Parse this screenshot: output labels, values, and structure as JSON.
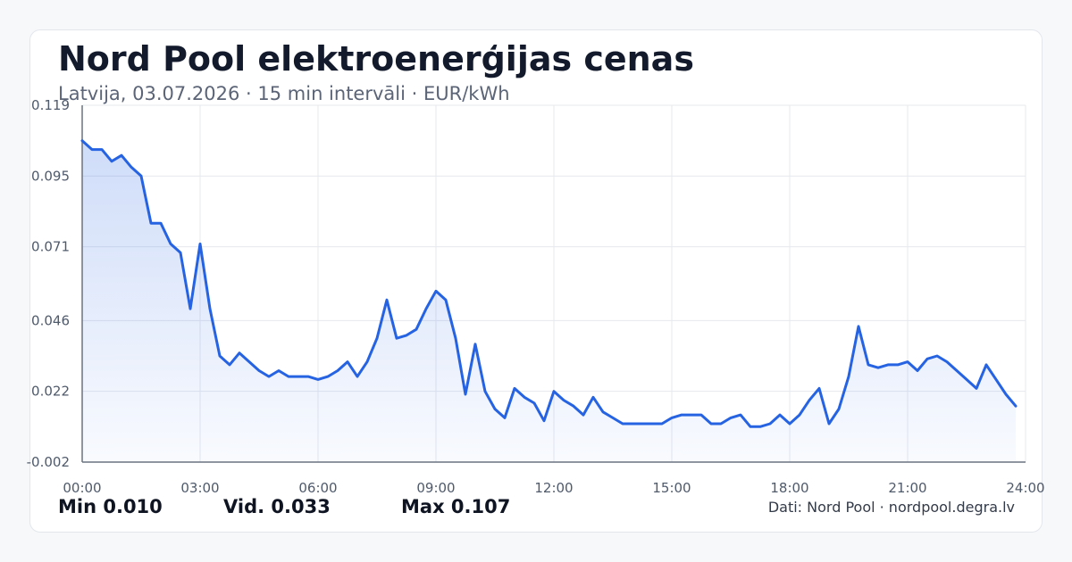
{
  "header": {
    "title": "Nord Pool elektroenerģijas cenas",
    "subtitle": "Latvija, 03.07.2026 · 15 min intervāli · EUR/kWh"
  },
  "stats": {
    "min": "Min 0.010",
    "avg": "Vid. 0.033",
    "max": "Max 0.107"
  },
  "footer": {
    "credit": "Dati: Nord Pool · nordpool.degra.lv"
  },
  "colors": {
    "line": "#2563e3",
    "grid": "#e6e8ee",
    "axis": "#6b7380",
    "tick_text": "#4f5a6b"
  },
  "chart_data": {
    "type": "area",
    "title": "",
    "xlabel": "",
    "ylabel": "",
    "xlim": [
      0,
      24
    ],
    "ylim": [
      -0.002,
      0.119
    ],
    "grid": true,
    "x_ticks": [
      0,
      3,
      6,
      9,
      12,
      15,
      18,
      21,
      24
    ],
    "x_tick_labels": [
      "00:00",
      "03:00",
      "06:00",
      "09:00",
      "12:00",
      "15:00",
      "18:00",
      "21:00",
      "24:00"
    ],
    "y_ticks": [
      -0.002,
      0.022,
      0.046,
      0.071,
      0.095,
      0.119
    ],
    "y_tick_labels": [
      "-0.002",
      "0.022",
      "0.046",
      "0.071",
      "0.095",
      "0.119"
    ],
    "series": [
      {
        "x": [
          0,
          0.25,
          0.5,
          0.75,
          1,
          1.25,
          1.5,
          1.75,
          2,
          2.25,
          2.5,
          2.75,
          3,
          3.25,
          3.5,
          3.75,
          4,
          4.25,
          4.5,
          4.75,
          5,
          5.25,
          5.5,
          5.75,
          6,
          6.25,
          6.5,
          6.75,
          7,
          7.25,
          7.5,
          7.75,
          8,
          8.25,
          8.5,
          8.75,
          9,
          9.25,
          9.5,
          9.75,
          10,
          10.25,
          10.5,
          10.75,
          11,
          11.25,
          11.5,
          11.75,
          12,
          12.25,
          12.5,
          12.75,
          13,
          13.25,
          13.5,
          13.75,
          14,
          14.25,
          14.5,
          14.75,
          15,
          15.25,
          15.5,
          15.75,
          16,
          16.25,
          16.5,
          16.75,
          17,
          17.25,
          17.5,
          17.75,
          18,
          18.25,
          18.5,
          18.75,
          19,
          19.25,
          19.5,
          19.75,
          20,
          20.25,
          20.5,
          20.75,
          21,
          21.25,
          21.5,
          21.75,
          22,
          22.25,
          22.5,
          22.75,
          23,
          23.25,
          23.5,
          23.75
        ],
        "values": [
          0.107,
          0.104,
          0.104,
          0.1,
          0.102,
          0.098,
          0.095,
          0.079,
          0.079,
          0.072,
          0.069,
          0.05,
          0.072,
          0.05,
          0.034,
          0.031,
          0.035,
          0.032,
          0.029,
          0.027,
          0.029,
          0.027,
          0.027,
          0.027,
          0.026,
          0.027,
          0.029,
          0.032,
          0.027,
          0.032,
          0.04,
          0.053,
          0.04,
          0.041,
          0.043,
          0.05,
          0.056,
          0.053,
          0.04,
          0.021,
          0.038,
          0.022,
          0.016,
          0.013,
          0.023,
          0.02,
          0.018,
          0.012,
          0.022,
          0.019,
          0.017,
          0.014,
          0.02,
          0.015,
          0.013,
          0.011,
          0.011,
          0.011,
          0.011,
          0.011,
          0.013,
          0.014,
          0.014,
          0.014,
          0.011,
          0.011,
          0.013,
          0.014,
          0.01,
          0.01,
          0.011,
          0.014,
          0.011,
          0.014,
          0.019,
          0.023,
          0.011,
          0.016,
          0.027,
          0.044,
          0.031,
          0.03,
          0.031,
          0.031,
          0.032,
          0.029,
          0.033,
          0.034,
          0.032,
          0.029,
          0.026,
          0.023,
          0.031,
          0.026,
          0.021,
          0.017
        ]
      }
    ]
  }
}
